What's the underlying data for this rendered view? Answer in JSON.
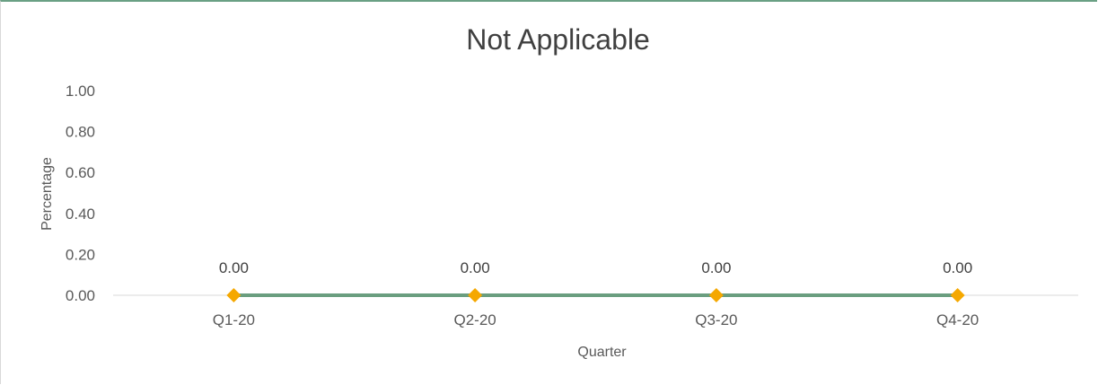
{
  "chart_data": {
    "type": "line",
    "title": "Not Applicable",
    "xlabel": "Quarter",
    "ylabel": "Percentage",
    "categories": [
      "Q1-20",
      "Q2-20",
      "Q3-20",
      "Q4-20"
    ],
    "series": [
      {
        "values": [
          0,
          0,
          0,
          0
        ],
        "data_labels": [
          "0.00",
          "0.00",
          "0.00",
          "0.00"
        ]
      }
    ],
    "y_ticks": [
      "0.00",
      "0.20",
      "0.40",
      "0.60",
      "0.80",
      "1.00"
    ],
    "ylim": [
      0,
      1
    ],
    "grid": false,
    "legend": "none",
    "colors": {
      "line": "#6a9e7f",
      "marker": "#f5a800",
      "axis": "#d9d9d9",
      "frame_top": "#6aa084"
    }
  }
}
